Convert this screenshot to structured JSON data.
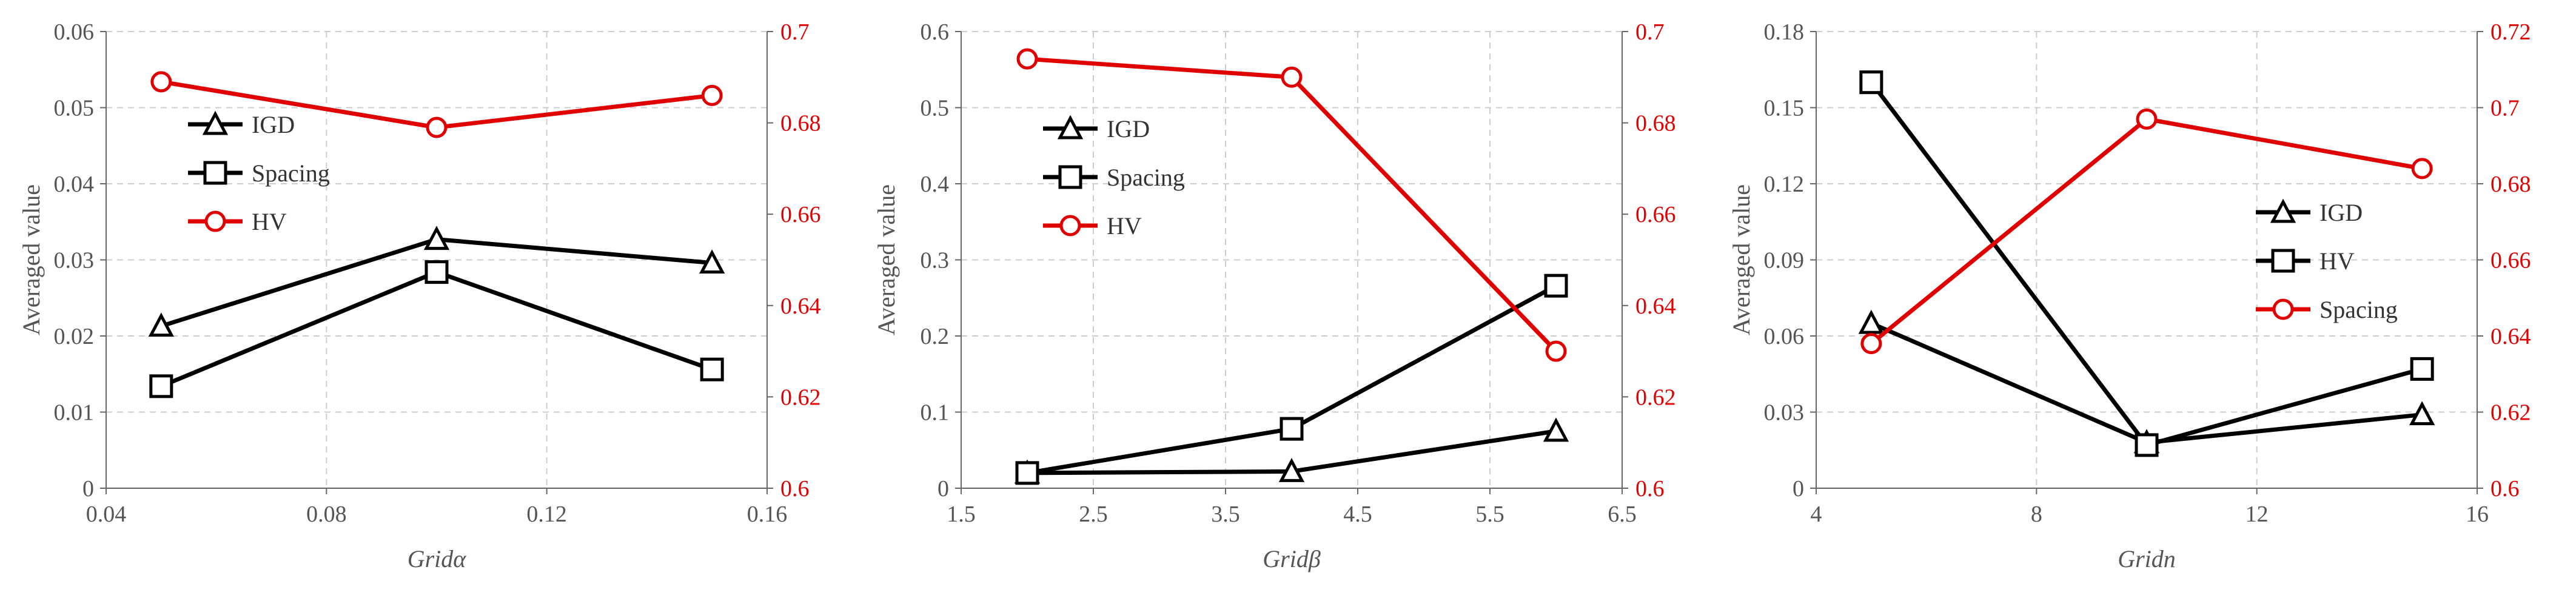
{
  "colors": {
    "black_series": "#000000",
    "red_series": "#e00000",
    "grid": "#cccccc",
    "axis": "#666666"
  },
  "chart_data": [
    {
      "type": "line",
      "xlabel": "Gridα",
      "ylabel": "Averaged value",
      "xlim": [
        0.04,
        0.16
      ],
      "xticks": [
        "0.04",
        "0.08",
        "0.12",
        "0.16"
      ],
      "ylim": [
        0,
        0.06
      ],
      "yticks": [
        "0",
        "0.01",
        "0.02",
        "0.03",
        "0.04",
        "0.05",
        "0.06"
      ],
      "y2lim": [
        0.6,
        0.7
      ],
      "y2ticks": [
        "0.6",
        "0.62",
        "0.64",
        "0.66",
        "0.68",
        "0.7"
      ],
      "x": [
        0.05,
        0.1,
        0.15
      ],
      "series": [
        {
          "name": "IGD",
          "axis": "left",
          "color": "#000000",
          "marker": "triangle",
          "values": [
            0.0213,
            0.0327,
            0.0296
          ]
        },
        {
          "name": "Spacing",
          "axis": "left",
          "color": "#000000",
          "marker": "square",
          "values": [
            0.0134,
            0.0284,
            0.0156
          ]
        },
        {
          "name": "HV",
          "axis": "right",
          "color": "#e00000",
          "marker": "circle",
          "values": [
            0.689,
            0.679,
            0.686
          ]
        }
      ],
      "legend_position": "top-left"
    },
    {
      "type": "line",
      "xlabel": "Gridβ",
      "ylabel": "Averaged value",
      "xlim": [
        1.5,
        6.5
      ],
      "xticks": [
        "1.5",
        "2.5",
        "3.5",
        "4.5",
        "5.5",
        "6.5"
      ],
      "ylim": [
        0,
        0.6
      ],
      "yticks": [
        "0",
        "0.1",
        "0.2",
        "0.3",
        "0.4",
        "0.5",
        "0.6"
      ],
      "y2lim": [
        0.6,
        0.7
      ],
      "y2ticks": [
        "0.6",
        "0.62",
        "0.64",
        "0.66",
        "0.68",
        "0.7"
      ],
      "x": [
        2,
        4,
        6
      ],
      "series": [
        {
          "name": "IGD",
          "axis": "left",
          "color": "#000000",
          "marker": "triangle",
          "values": [
            0.02,
            0.022,
            0.075
          ]
        },
        {
          "name": "Spacing",
          "axis": "left",
          "color": "#000000",
          "marker": "square",
          "values": [
            0.02,
            0.078,
            0.266
          ]
        },
        {
          "name": "HV",
          "axis": "right",
          "color": "#e00000",
          "marker": "circle",
          "values": [
            0.694,
            0.69,
            0.63
          ]
        }
      ],
      "legend_position": "top-left"
    },
    {
      "type": "line",
      "xlabel": "Gridn",
      "ylabel": "Averaged value",
      "xlim": [
        4,
        16
      ],
      "xticks": [
        "4",
        "8",
        "12",
        "16"
      ],
      "ylim": [
        0,
        0.18
      ],
      "yticks": [
        "0",
        "0.03",
        "0.06",
        "0.09",
        "0.12",
        "0.15",
        "0.18"
      ],
      "y2lim": [
        0.6,
        0.72
      ],
      "y2ticks": [
        "0.6",
        "0.62",
        "0.64",
        "0.66",
        "0.68",
        "0.7",
        "0.72"
      ],
      "x": [
        5,
        10,
        15
      ],
      "series": [
        {
          "name": "IGD",
          "axis": "left",
          "color": "#000000",
          "marker": "triangle",
          "values": [
            0.065,
            0.018,
            0.029
          ]
        },
        {
          "name": "HV",
          "axis": "left",
          "color": "#000000",
          "marker": "square",
          "values": [
            0.16,
            0.017,
            0.047
          ]
        },
        {
          "name": "Spacing",
          "axis": "right",
          "color": "#e00000",
          "marker": "circle",
          "values": [
            0.638,
            0.697,
            0.684
          ]
        }
      ],
      "legend_position": "middle-right"
    }
  ]
}
